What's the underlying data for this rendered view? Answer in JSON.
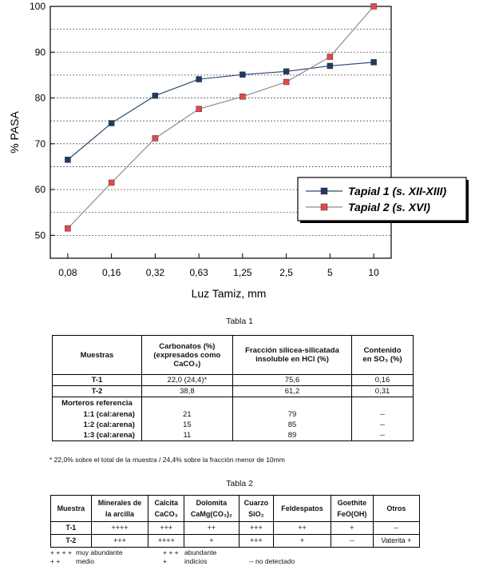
{
  "chart_data": {
    "type": "line",
    "title": "",
    "xlabel": "Luz Tamiz, mm",
    "ylabel": "% PASA",
    "categories": [
      "0,08",
      "0,16",
      "0,32",
      "0,63",
      "1,25",
      "2,5",
      "5",
      "10"
    ],
    "ylim": [
      45,
      100
    ],
    "yticks": [
      50,
      60,
      70,
      80,
      90,
      100
    ],
    "grid": "dashed horizontal every 5",
    "legend_position": "right",
    "series": [
      {
        "name": "Tapial 1 (s. XII-XIII)",
        "values": [
          66.5,
          74.5,
          80.5,
          84.1,
          85.1,
          85.8,
          87.0,
          87.8
        ],
        "color": "#2e4a6e",
        "marker": "#1f3b63"
      },
      {
        "name": "Tapial 2 (s. XVI)",
        "values": [
          51.5,
          61.5,
          71.2,
          77.6,
          80.3,
          83.5,
          89.0,
          100.0
        ],
        "color": "#8c8c8c",
        "marker": "#e8484a"
      }
    ]
  },
  "table1": {
    "caption": "Tabla 1",
    "headers": [
      "Muestras",
      "Carbonatos (%)\n(expresados como\nCaCO₃)",
      "Fracción silícea-silicatada\ninsoluble en HCl (%)",
      "Contenido\nen SO₃ (%)"
    ],
    "rows": [
      [
        "T-1",
        "22,0 (24,4)*",
        "75,6",
        "0,16"
      ],
      [
        "T-2",
        "38,8",
        "61,2",
        "0,31"
      ]
    ],
    "ref_title": "Morteros referencia",
    "ref_rows": [
      [
        "1:1 (cal:arena)",
        "21",
        "79",
        "--"
      ],
      [
        "1:2 (cal:arena)",
        "15",
        "85",
        "--"
      ],
      [
        "1:3 (cal:arena)",
        "11",
        "89",
        "--"
      ]
    ],
    "footnote": "* 22,0% sobre el total de la muestra / 24,4% sobre la fracción menor de 10mm"
  },
  "table2": {
    "caption": "Tabla 2",
    "headers": [
      "Muestra",
      "Minerales de\nla arcilla",
      "Calcita\nCaCO₃",
      "Dolomita\nCaMg(CO₃)₂",
      "Cuarzo\nSiO₂",
      "Feldespatos",
      "Goethite\nFeO(OH)",
      "Otros"
    ],
    "rows": [
      [
        "T-1",
        "++++",
        "+++",
        "++",
        "+++",
        "++",
        "+",
        "--"
      ],
      [
        "T-2",
        "+++",
        "++++",
        "+",
        "+++",
        "+",
        "--",
        "Vaterita +"
      ]
    ],
    "legend": {
      "l1a": "+ + + +",
      "l1b": "muy abundante",
      "l2a": "+ +",
      "l2b": "medio",
      "m1a": "+ + +",
      "m1b": "abundante",
      "m2a": "+",
      "m2b": "indicios",
      "r2": "-- no detectado"
    }
  }
}
